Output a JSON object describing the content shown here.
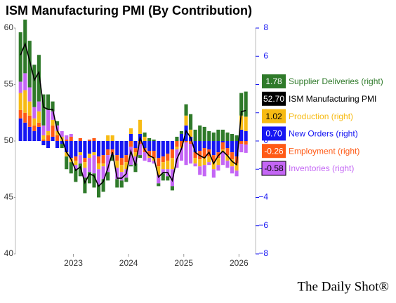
{
  "chart_data": {
    "type": "bar",
    "title": "ISM Manufacturing PMI (By Contribution)",
    "source": "The Daily Shot®",
    "x": [
      2022.042,
      2022.125,
      2022.208,
      2022.292,
      2022.375,
      2022.458,
      2022.542,
      2022.625,
      2022.708,
      2022.792,
      2022.875,
      2022.958,
      2023.042,
      2023.125,
      2023.208,
      2023.292,
      2023.375,
      2023.458,
      2023.542,
      2023.625,
      2023.708,
      2023.792,
      2023.875,
      2023.958,
      2024.042,
      2024.125,
      2024.208,
      2024.292,
      2024.375,
      2024.458,
      2024.542,
      2024.625,
      2024.708,
      2024.792,
      2024.875,
      2024.958,
      2025.042,
      2025.125,
      2025.208,
      2025.292,
      2025.375,
      2025.458,
      2025.542,
      2025.625,
      2025.708,
      2025.792,
      2025.875,
      2025.958,
      2026.042,
      2026.125
    ],
    "xlim": [
      2021.95,
      2026.25
    ],
    "xticks": [
      2023,
      2024,
      2025,
      2026
    ],
    "ylim": [
      40,
      60
    ],
    "yticks": [
      40,
      45,
      50,
      55,
      60
    ],
    "y2lim": [
      -8,
      8
    ],
    "y2ticks": [
      {
        "value": -8,
        "label": "−8"
      },
      {
        "value": -6,
        "label": "−6"
      },
      {
        "value": -4,
        "label": "−4"
      },
      {
        "value": -2,
        "label": "−2"
      },
      0,
      2,
      4,
      6,
      8
    ],
    "series": [
      {
        "name": "Supplier Deliveries (right)",
        "type": "bar",
        "axis": "y2",
        "color": "#2f7a2a",
        "label_color": "#ffffff",
        "values": [
          3.5,
          3.8,
          3.3,
          3.0,
          3.3,
          2.2,
          1.1,
          0.7,
          0.3,
          -0.3,
          -0.9,
          -0.8,
          -0.9,
          -0.9,
          -1.1,
          -0.8,
          -1.0,
          -0.9,
          -0.9,
          -0.6,
          -0.4,
          -0.6,
          -0.5,
          -0.3,
          -0.1,
          -0.6,
          -0.2,
          0.3,
          0.2,
          0.1,
          -0.2,
          -0.5,
          -0.3,
          -0.3,
          0.3,
          0.2,
          0.8,
          1.1,
          0.8,
          1.1,
          1.0,
          0.7,
          0.6,
          0.8,
          0.8,
          0.6,
          0.5,
          0.4,
          1.6,
          1.78
        ],
        "value_labels": [
          null,
          null,
          null,
          null,
          null,
          null,
          null,
          null,
          null,
          null,
          null,
          null,
          null,
          null,
          null,
          null,
          null,
          null,
          null,
          null,
          null,
          null,
          null,
          null,
          null,
          null,
          null,
          null,
          null,
          null,
          null,
          null,
          null,
          null,
          null,
          null,
          null,
          null,
          null,
          null,
          null,
          null,
          null,
          null,
          null,
          null,
          null,
          null,
          null,
          "1.78"
        ]
      },
      {
        "name": "ISM Manufacturing PMI",
        "type": "line",
        "axis": "y",
        "color": "#000000",
        "label_color": "#ffffff",
        "values": [
          57.6,
          58.6,
          57.1,
          55.4,
          56.1,
          53.0,
          52.8,
          52.8,
          50.9,
          50.2,
          49.0,
          48.4,
          47.4,
          47.7,
          46.3,
          47.1,
          46.9,
          46.0,
          46.4,
          47.6,
          49.0,
          46.7,
          46.7,
          47.1,
          49.1,
          47.8,
          50.3,
          49.2,
          48.7,
          48.5,
          46.8,
          47.2,
          47.2,
          46.5,
          48.4,
          49.3,
          50.9,
          50.3,
          49.0,
          48.7,
          48.5,
          49.0,
          48.0,
          48.7,
          49.1,
          48.7,
          48.2,
          47.9,
          52.6,
          52.7
        ],
        "value_labels": [
          null,
          null,
          null,
          null,
          null,
          null,
          null,
          null,
          null,
          null,
          null,
          null,
          null,
          null,
          null,
          null,
          null,
          null,
          null,
          null,
          null,
          null,
          null,
          null,
          null,
          null,
          null,
          null,
          null,
          null,
          null,
          null,
          null,
          null,
          null,
          null,
          null,
          null,
          null,
          null,
          null,
          null,
          null,
          null,
          null,
          null,
          null,
          null,
          null,
          "52.70"
        ]
      },
      {
        "name": "Production (right)",
        "type": "bar",
        "axis": "y2",
        "color": "#f7bb14",
        "label_color": "#000000",
        "values": [
          1.2,
          1.6,
          1.0,
          0.5,
          0.8,
          0.3,
          0.3,
          0.4,
          0.3,
          0.3,
          -0.3,
          -0.3,
          -0.3,
          -0.2,
          -0.4,
          -0.3,
          -0.2,
          -0.4,
          -0.2,
          0.4,
          0.4,
          -0.5,
          -0.5,
          -0.5,
          0.4,
          -0.3,
          1.0,
          0.3,
          -0.1,
          -0.2,
          -0.6,
          -0.5,
          -0.6,
          -0.8,
          -0.2,
          -0.1,
          0.7,
          0.5,
          -0.4,
          -0.5,
          -0.5,
          -0.4,
          -0.5,
          -0.5,
          -0.2,
          -0.4,
          -0.5,
          -0.5,
          1.0,
          1.02
        ],
        "value_labels": [
          null,
          null,
          null,
          null,
          null,
          null,
          null,
          null,
          null,
          null,
          null,
          null,
          null,
          null,
          null,
          null,
          null,
          null,
          null,
          null,
          null,
          null,
          null,
          null,
          null,
          null,
          null,
          null,
          null,
          null,
          null,
          null,
          null,
          null,
          null,
          null,
          null,
          null,
          null,
          null,
          null,
          null,
          null,
          null,
          null,
          null,
          null,
          null,
          null,
          "1.02"
        ]
      },
      {
        "name": "New Orders (right)",
        "type": "bar",
        "axis": "y2",
        "color": "#1616f2",
        "label_color": "#ffffff",
        "values": [
          1.6,
          1.3,
          1.0,
          0.7,
          1.0,
          -0.3,
          -0.5,
          0.3,
          -0.5,
          -0.2,
          -0.8,
          -1.2,
          -1.1,
          -0.8,
          -1.2,
          -0.9,
          -0.8,
          -1.1,
          -1.0,
          -0.6,
          -0.6,
          -1.0,
          -1.2,
          -1.0,
          0.5,
          -0.5,
          0.5,
          -0.5,
          -0.7,
          -0.7,
          -1.2,
          -1.1,
          -0.9,
          -0.6,
          0.0,
          0.5,
          1.1,
          0.3,
          -0.8,
          -0.7,
          -0.5,
          -0.6,
          -1.0,
          -0.8,
          -0.1,
          -0.5,
          -0.8,
          -1.1,
          0.8,
          0.7
        ],
        "value_labels": [
          null,
          null,
          null,
          null,
          null,
          null,
          null,
          null,
          null,
          null,
          null,
          null,
          null,
          null,
          null,
          null,
          null,
          null,
          null,
          null,
          null,
          null,
          null,
          null,
          null,
          null,
          null,
          null,
          null,
          null,
          null,
          null,
          null,
          null,
          null,
          null,
          null,
          null,
          null,
          null,
          null,
          null,
          null,
          null,
          null,
          null,
          null,
          null,
          null,
          "0.70"
        ]
      },
      {
        "name": "Employment (right)",
        "type": "bar",
        "axis": "y2",
        "color": "#ff5a16",
        "label_color": "#ffffff",
        "values": [
          0.6,
          0.7,
          0.8,
          0.4,
          0.3,
          0.1,
          0.4,
          0.8,
          0.4,
          0.0,
          0.1,
          0.3,
          -0.3,
          0.2,
          -0.3,
          0.1,
          0.2,
          -0.5,
          -0.6,
          -0.4,
          -0.3,
          -0.4,
          -0.5,
          -0.5,
          -0.4,
          -0.3,
          -0.2,
          -0.3,
          -0.4,
          -0.5,
          -0.6,
          -0.4,
          -0.5,
          -0.6,
          -0.4,
          -0.4,
          -0.1,
          -0.2,
          -0.4,
          -0.6,
          -0.7,
          -0.5,
          -0.5,
          -0.4,
          -0.5,
          -0.5,
          -0.5,
          -0.5,
          -0.2,
          -0.26
        ],
        "value_labels": [
          null,
          null,
          null,
          null,
          null,
          null,
          null,
          null,
          null,
          null,
          null,
          null,
          null,
          null,
          null,
          null,
          null,
          null,
          null,
          null,
          null,
          null,
          null,
          null,
          null,
          null,
          null,
          null,
          null,
          null,
          null,
          null,
          null,
          null,
          null,
          null,
          null,
          null,
          null,
          null,
          null,
          null,
          null,
          null,
          null,
          null,
          null,
          null,
          null,
          "-0.26"
        ]
      },
      {
        "name": "Inventories (right)",
        "type": "bar",
        "axis": "y2",
        "color": "#c466f5",
        "label_color": "#000000",
        "values": [
          0.8,
          1.2,
          1.0,
          0.8,
          0.7,
          0.7,
          1.5,
          0.6,
          0.4,
          0.4,
          0.3,
          0.2,
          -0.3,
          -0.6,
          -0.7,
          -1.0,
          -1.3,
          -1.1,
          -0.9,
          -1.2,
          -0.1,
          -0.8,
          -0.6,
          -0.6,
          -1.3,
          -0.5,
          -0.8,
          -0.6,
          -0.3,
          -0.2,
          -0.6,
          -0.3,
          -0.5,
          -1.2,
          -1.3,
          -0.9,
          -1.6,
          -1.4,
          -0.2,
          -0.6,
          -0.8,
          -0.2,
          -0.6,
          -0.4,
          -0.9,
          -0.5,
          -0.5,
          -0.4,
          -0.6,
          -0.58
        ],
        "value_labels": [
          null,
          null,
          null,
          null,
          null,
          null,
          null,
          null,
          null,
          null,
          null,
          null,
          null,
          null,
          null,
          null,
          null,
          null,
          null,
          null,
          null,
          null,
          null,
          null,
          null,
          null,
          null,
          null,
          null,
          null,
          null,
          null,
          null,
          null,
          null,
          null,
          null,
          null,
          null,
          null,
          null,
          null,
          null,
          null,
          null,
          null,
          null,
          null,
          null,
          "-0.58"
        ]
      }
    ]
  }
}
